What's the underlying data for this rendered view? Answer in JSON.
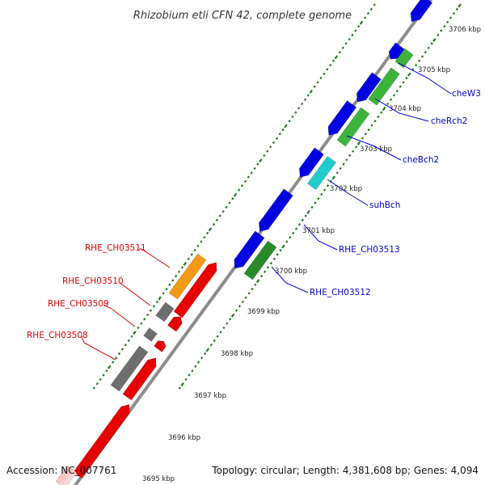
{
  "title": "Rhizobium etli CFN 42, complete genome",
  "footer": {
    "accession": "Accession: NC_007761",
    "summary": "Topology: circular; Length: 4,381,608 bp; Genes: 4,094"
  },
  "ticks": [
    "3695 kbp",
    "3696 kbp",
    "3697 kbp",
    "3698 kbp",
    "3699 kbp",
    "3700 kbp",
    "3701 kbp",
    "3702 kbp",
    "3703 kbp",
    "3704 kbp",
    "3705 kbp",
    "3706 kbp"
  ],
  "genes": {
    "left_labels": [
      "RHE_CH03511",
      "RHE_CH03510",
      "RHE_CH03509",
      "RHE_CH03508"
    ],
    "right_labels": [
      "cheW3",
      "cheRch2",
      "cheBch2",
      "suhBch",
      "RHE_CH03513",
      "RHE_CH03512"
    ]
  },
  "colors": {
    "backbone": "#8c8c8c",
    "tick": "#1a7a1a",
    "forward_gene": "#0000e0",
    "reverse_gene": "#e80000",
    "che_gene": "#3cb43c",
    "dark_green_gene": "#2a8a2a",
    "suhB_gene": "#22cccc",
    "orange_gene": "#f59a14",
    "gray_gene": "#6e6e6e",
    "right_label": "#0000cc",
    "left_label": "#dd0000"
  }
}
